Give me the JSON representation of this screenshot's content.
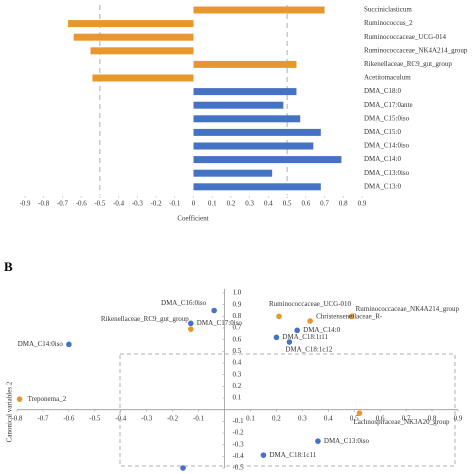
{
  "chart_data": [
    {
      "type": "barh",
      "categories": [
        "Succiniclasticum",
        "Ruminococcus_2",
        "Ruminococcaceae_UCG-014",
        "Ruminococcaceae_NK4A214_group",
        "Rikenellaceae_RC9_gut_group",
        "Acetitomaculum",
        "DMA_C18:0",
        "DMA_C17:0ante",
        "DMA_C15:0iso",
        "DMA_C15:0",
        "DMA_C14:0iso",
        "DMA_C14:0",
        "DMA_C13:0iso",
        "DMA_C13:0"
      ],
      "values": [
        0.7,
        -0.67,
        -0.64,
        -0.55,
        0.55,
        -0.54,
        0.55,
        0.48,
        0.57,
        0.68,
        0.64,
        0.79,
        0.42,
        0.68
      ],
      "colors": [
        "#e8962e",
        "#e8962e",
        "#e8962e",
        "#e8962e",
        "#e8962e",
        "#e8962e",
        "#4472c4",
        "#4472c4",
        "#4472c4",
        "#4472c4",
        "#4472c4",
        "#4472c4",
        "#4472c4",
        "#4472c4"
      ],
      "xlabel": "Coefficient",
      "xlim": [
        -0.9,
        0.9
      ],
      "xticks": [
        -0.9,
        -0.8,
        -0.7,
        -0.6,
        -0.5,
        -0.4,
        -0.3,
        -0.2,
        -0.1,
        0,
        0.1,
        0.2,
        0.3,
        0.4,
        0.5,
        0.6,
        0.7,
        0.8,
        0.9
      ],
      "reference_lines": [
        -0.5,
        0.5
      ]
    },
    {
      "type": "scatter",
      "panel_label": "B",
      "ylabel": "Canonical variables 2",
      "xlim": [
        -0.8,
        0.9
      ],
      "ylim": [
        -0.5,
        1
      ],
      "xticks": [
        -0.8,
        -0.7,
        -0.6,
        -0.5,
        -0.4,
        -0.3,
        -0.2,
        -0.1,
        0.1,
        0.2,
        0.3,
        0.4,
        0.5,
        0.6,
        0.7,
        0.8,
        0.9
      ],
      "yticks": [
        -0.5,
        -0.4,
        -0.3,
        -0.2,
        -0.1,
        0.1,
        0.2,
        0.3,
        0.4,
        0.5,
        0.6,
        0.7,
        0.8,
        0.9,
        {
          "value": 1,
          "label": "1.0"
        }
      ],
      "series": [
        {
          "color": "#e8962e",
          "labels": [
            "Rikenellaceae_RC9_gut_group",
            "Treponema_2",
            "Ruminococcaceae_UCG-010",
            "Ruminococcaceae_NK4A214_group",
            "Christensenellaceae_R-",
            "Lachnospiraceae_NK3A20_group"
          ],
          "x": [
            -0.13,
            -0.79,
            0.21,
            0.49,
            0.33,
            0.52
          ],
          "y": [
            0.69,
            0.09,
            0.8,
            0.8,
            0.76,
            -0.03
          ]
        },
        {
          "color": "#4472c4",
          "labels": [
            "DMA_C16:0iso",
            "DMA_C17:0iso",
            "DMA_C14:0iso",
            "DMA_C14:0",
            "DMA_C18:1t11",
            "DMA_C18:1c12",
            "DMA_C13:0iso",
            "DMA_C18:1c11",
            null
          ],
          "x": [
            -0.04,
            -0.13,
            -0.6,
            0.28,
            0.2,
            0.25,
            0.36,
            0.15,
            -0.16
          ],
          "y": [
            0.85,
            0.74,
            0.56,
            0.68,
            0.62,
            0.58,
            -0.27,
            -0.39,
            -0.5
          ]
        }
      ]
    }
  ]
}
